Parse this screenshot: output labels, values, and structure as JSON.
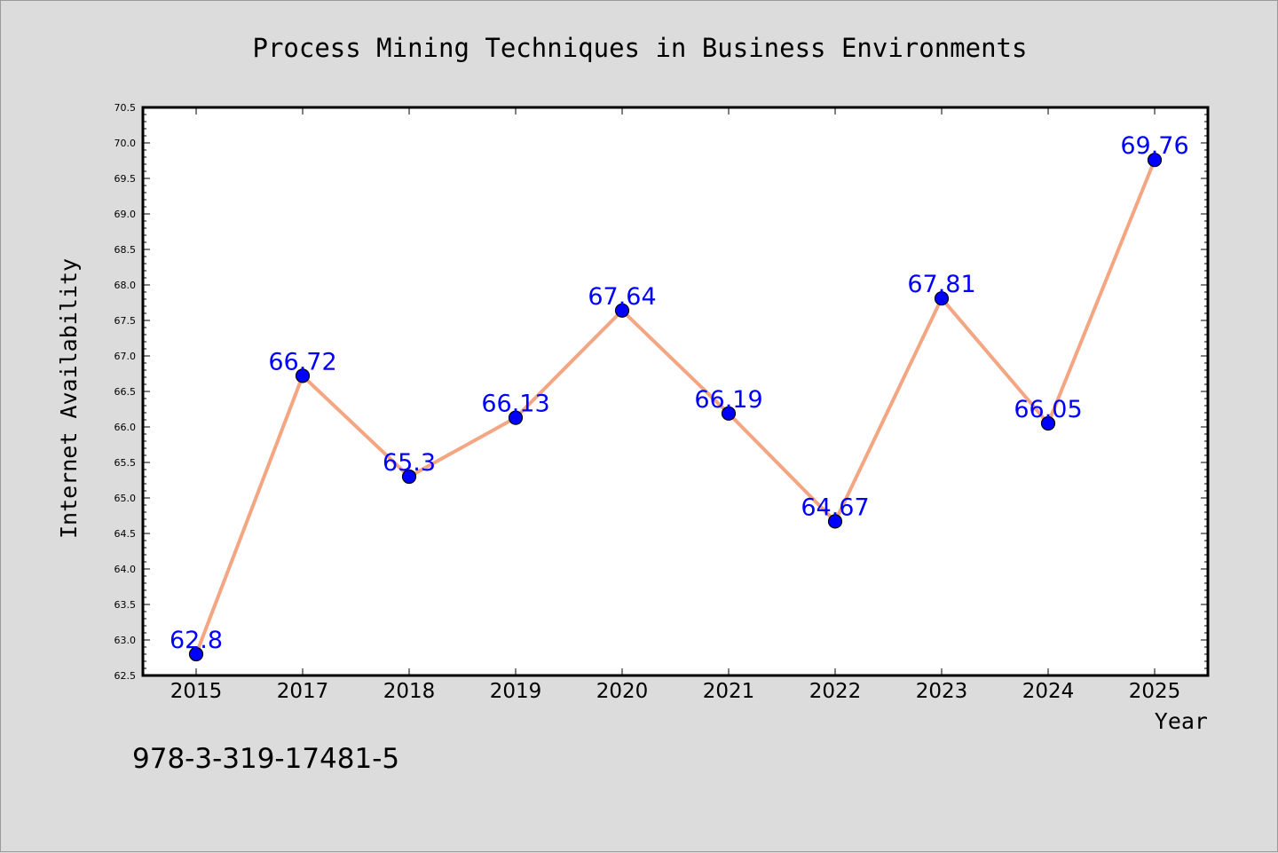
{
  "page": {
    "footer_code": "978-3-319-17481-5"
  },
  "chart_data": {
    "type": "line",
    "title": "Process Mining Techniques in Business Environments",
    "xlabel": "Year",
    "ylabel": "Internet Availability",
    "categories": [
      "2015",
      "2017",
      "2018",
      "2019",
      "2020",
      "2021",
      "2022",
      "2023",
      "2024",
      "2025"
    ],
    "series": [
      {
        "name": "",
        "values": [
          62.8,
          66.72,
          65.3,
          66.13,
          67.64,
          66.19,
          64.67,
          67.81,
          66.05,
          69.76
        ],
        "data_labels": [
          "62.8",
          "66.72",
          "65.3",
          "66.13",
          "67.64",
          "66.19",
          "64.67",
          "67.81",
          "66.05",
          "69.76"
        ]
      }
    ],
    "ylim": [
      62.5,
      70.5
    ],
    "yticks": [
      "62.5",
      "63.0",
      "63.5",
      "64.0",
      "64.5",
      "65.0",
      "65.5",
      "66.0",
      "66.5",
      "67.0",
      "67.5",
      "68.0",
      "68.5",
      "69.0",
      "69.5",
      "70.0",
      "70.5"
    ],
    "grid": false,
    "legend": "none",
    "colors": {
      "line": "#f4a582",
      "marker": "#0000ff",
      "label": "#0000ff",
      "plot_background": "#ffffff",
      "figure_background": "#dcdcdc"
    }
  }
}
